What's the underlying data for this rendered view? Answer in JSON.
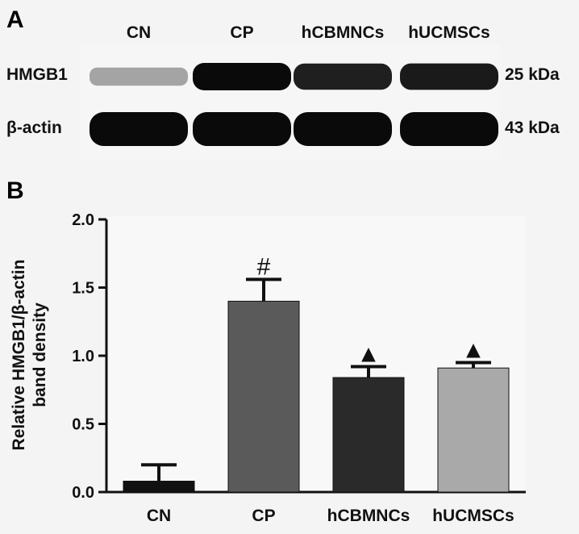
{
  "panel_a": {
    "letter": "A",
    "lanes": [
      "CN",
      "CP",
      "hCBMNCs",
      "hUCMSCs"
    ],
    "rows": [
      {
        "protein": "HMGB1",
        "size": "25 kDa",
        "intensities": [
          0.25,
          1.0,
          0.9,
          0.92
        ]
      },
      {
        "protein": "β-actin",
        "size": "43 kDa",
        "intensities": [
          1.0,
          1.0,
          1.0,
          1.0
        ]
      }
    ]
  },
  "chart_data": {
    "type": "bar",
    "panel_letter": "B",
    "categories": [
      "CN",
      "CP",
      "hCBMNCs",
      "hUCMSCs"
    ],
    "values": [
      0.08,
      1.4,
      0.84,
      0.91
    ],
    "errors": [
      0.12,
      0.16,
      0.08,
      0.04
    ],
    "bar_colors": [
      "#111111",
      "#5a5a5a",
      "#2a2a2a",
      "#a9a9a9"
    ],
    "significance": [
      "",
      "#",
      "▲",
      "▲"
    ],
    "ylabel_line1": "Relative HMGB1/β-actin",
    "ylabel_line2": "band density",
    "yticks": [
      "0.0",
      "0.5",
      "1.0",
      "1.5",
      "2.0"
    ],
    "ylim": [
      0,
      2.0
    ],
    "grid": false
  }
}
